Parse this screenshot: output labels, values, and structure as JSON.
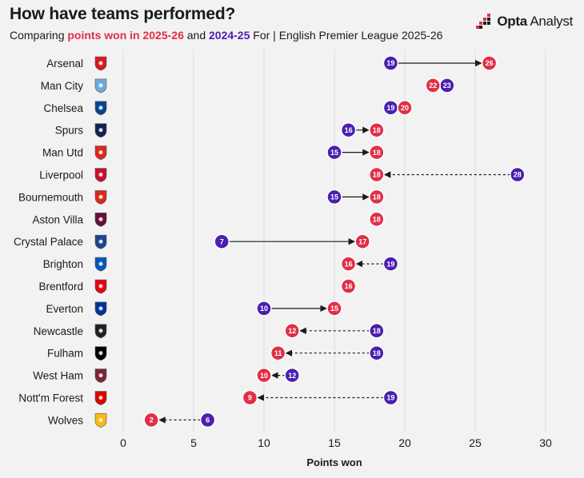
{
  "header": {
    "title": "How have teams performed?",
    "subtitle_prefix": "Comparing ",
    "subtitle_current": "points won in 2025-26",
    "subtitle_and": " and ",
    "subtitle_previous": "2024-25",
    "subtitle_suffix": " For | English Premier League 2025-26"
  },
  "brand": {
    "name_bold": "Opta",
    "name_light": " Analyst",
    "icon": "opta-logo-icon"
  },
  "colors": {
    "current": "#e02f47",
    "previous": "#4b1fb0",
    "grid": "#dcdcdc",
    "background": "#f2f2f2",
    "connector": "#1a1a1a"
  },
  "chart_data": {
    "type": "dumbbell",
    "title": "How have teams performed?",
    "xlabel": "Points won",
    "xlim": [
      0,
      30
    ],
    "xticks": [
      0,
      5,
      10,
      15,
      20,
      25,
      30
    ],
    "grid": true,
    "connector_style": "solid arrow when current > previous, dashed arrow when current < previous, arrow points toward 2025-26 value",
    "series": [
      {
        "name": "2025-26",
        "key": "current",
        "color": "#e02f47"
      },
      {
        "name": "2024-25",
        "key": "previous",
        "color": "#4b1fb0"
      }
    ],
    "teams": [
      {
        "team": "Arsenal",
        "badge": "arsenal-badge-icon",
        "current": 26,
        "previous": 19
      },
      {
        "team": "Man City",
        "badge": "man-city-badge-icon",
        "current": 22,
        "previous": 23
      },
      {
        "team": "Chelsea",
        "badge": "chelsea-badge-icon",
        "current": 20,
        "previous": 19
      },
      {
        "team": "Spurs",
        "badge": "spurs-badge-icon",
        "current": 18,
        "previous": 16
      },
      {
        "team": "Man Utd",
        "badge": "man-utd-badge-icon",
        "current": 18,
        "previous": 15
      },
      {
        "team": "Liverpool",
        "badge": "liverpool-badge-icon",
        "current": 18,
        "previous": 28
      },
      {
        "team": "Bournemouth",
        "badge": "bournemouth-badge-icon",
        "current": 18,
        "previous": 15
      },
      {
        "team": "Aston Villa",
        "badge": "aston-villa-badge-icon",
        "current": 18,
        "previous": 18
      },
      {
        "team": "Crystal Palace",
        "badge": "crystal-palace-badge-icon",
        "current": 17,
        "previous": 7
      },
      {
        "team": "Brighton",
        "badge": "brighton-badge-icon",
        "current": 16,
        "previous": 19
      },
      {
        "team": "Brentford",
        "badge": "brentford-badge-icon",
        "current": 16,
        "previous": 16
      },
      {
        "team": "Everton",
        "badge": "everton-badge-icon",
        "current": 15,
        "previous": 10
      },
      {
        "team": "Newcastle",
        "badge": "newcastle-badge-icon",
        "current": 12,
        "previous": 18
      },
      {
        "team": "Fulham",
        "badge": "fulham-badge-icon",
        "current": 11,
        "previous": 18
      },
      {
        "team": "West Ham",
        "badge": "west-ham-badge-icon",
        "current": 10,
        "previous": 12
      },
      {
        "team": "Nott'm Forest",
        "badge": "nottm-forest-badge-icon",
        "current": 9,
        "previous": 19
      },
      {
        "team": "Wolves",
        "badge": "wolves-badge-icon",
        "current": 2,
        "previous": 6
      }
    ]
  }
}
